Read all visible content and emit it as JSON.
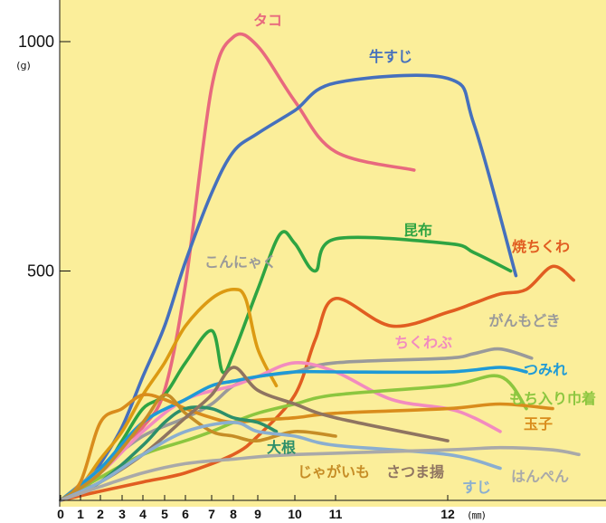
{
  "chart_data": {
    "type": "line",
    "title": "",
    "xlabel": "",
    "ylabel": "",
    "x_unit": "(㎜)",
    "y_unit": "(g)",
    "x_ticks": [
      "0",
      "1",
      "2",
      "3",
      "4",
      "5",
      "6",
      "7",
      "8",
      "9",
      "10",
      "11",
      "12"
    ],
    "y_ticks": [
      "500",
      "1000"
    ],
    "ylim": [
      0,
      1050
    ],
    "grid": false,
    "background": "#fbee9a",
    "series": [
      {
        "name": "タコ",
        "color": "#e8697e",
        "x": [
          0,
          1,
          2,
          3,
          4,
          5,
          6,
          7,
          8,
          9,
          10,
          11,
          11.7
        ],
        "y": [
          0,
          20,
          60,
          120,
          160,
          240,
          470,
          900,
          1010,
          990,
          870,
          760,
          720
        ]
      },
      {
        "name": "牛すじ",
        "color": "#4570bd",
        "x": [
          0,
          1,
          2,
          3,
          4,
          5,
          6,
          7,
          8,
          9,
          10,
          11,
          12,
          12.5,
          13.3
        ],
        "y": [
          0,
          20,
          80,
          160,
          270,
          380,
          520,
          670,
          760,
          800,
          850,
          910,
          920,
          820,
          490
        ]
      },
      {
        "name": "昆布",
        "color": "#2ea442",
        "x": [
          0,
          2,
          3,
          4,
          5,
          6,
          7,
          7.5,
          8,
          9,
          9.6,
          10,
          10.5,
          11,
          12,
          12.5,
          13.2
        ],
        "y": [
          0,
          60,
          130,
          200,
          230,
          300,
          370,
          280,
          320,
          460,
          580,
          560,
          500,
          570,
          560,
          540,
          500
        ]
      },
      {
        "name": "焼ちくわ",
        "color": "#e15d21",
        "x": [
          0,
          2,
          4,
          6,
          8,
          9,
          10,
          10.5,
          11,
          11.5,
          12,
          12.5,
          13,
          13.5,
          14,
          14.4
        ],
        "y": [
          0,
          20,
          40,
          60,
          100,
          140,
          230,
          350,
          440,
          380,
          410,
          430,
          450,
          460,
          510,
          480
        ]
      },
      {
        "name": "こんにゃく",
        "color": "#dc9a12",
        "x": [
          0,
          1,
          2,
          3,
          4,
          5,
          6,
          7,
          8,
          8.5,
          9,
          9.5
        ],
        "y": [
          0,
          30,
          90,
          150,
          230,
          300,
          380,
          440,
          460,
          440,
          330,
          250
        ]
      },
      {
        "name": "がんもどき",
        "color": "#9a9a9a",
        "x": [
          0,
          2,
          4,
          6,
          7,
          8,
          9,
          10,
          11,
          12,
          12.5,
          13,
          13.6
        ],
        "y": [
          0,
          70,
          140,
          180,
          210,
          250,
          270,
          280,
          300,
          310,
          320,
          330,
          310
        ]
      },
      {
        "name": "ちくわぶ",
        "color": "#f28bbf",
        "x": [
          0,
          2,
          4,
          6,
          8,
          9,
          10,
          11,
          11.5,
          12,
          12.5,
          13
        ],
        "y": [
          0,
          60,
          150,
          220,
          250,
          270,
          300,
          280,
          220,
          200,
          180,
          150
        ]
      },
      {
        "name": "つみれ",
        "color": "#1e9ad6",
        "x": [
          0,
          2,
          4,
          6,
          7,
          8,
          9,
          10,
          11,
          12,
          13,
          13.5
        ],
        "y": [
          0,
          70,
          170,
          220,
          250,
          260,
          270,
          280,
          280,
          280,
          290,
          280
        ]
      },
      {
        "name": "もち入り巾着",
        "color": "#8cc63f",
        "x": [
          0,
          2,
          4,
          6,
          7,
          8,
          9,
          10,
          11,
          12,
          13,
          13.5
        ],
        "y": [
          0,
          50,
          100,
          130,
          150,
          170,
          190,
          210,
          230,
          250,
          270,
          200
        ]
      },
      {
        "name": "玉子",
        "color": "#d98c1c",
        "x": [
          0,
          1,
          2,
          3,
          4,
          5,
          6,
          7,
          8,
          9,
          10,
          11,
          12,
          13,
          14
        ],
        "y": [
          0,
          40,
          170,
          200,
          230,
          220,
          200,
          180,
          170,
          175,
          180,
          190,
          200,
          210,
          200
        ]
      },
      {
        "name": "大根",
        "color": "#2c8f6a",
        "x": [
          0,
          2,
          4,
          5,
          6,
          7,
          8,
          9,
          9.5
        ],
        "y": [
          0,
          40,
          120,
          170,
          200,
          200,
          180,
          170,
          150
        ]
      },
      {
        "name": "じゃがいも",
        "color": "#c68d26",
        "x": [
          0,
          2,
          4,
          5,
          6,
          7,
          8,
          9,
          10,
          11
        ],
        "y": [
          0,
          60,
          170,
          230,
          190,
          150,
          140,
          130,
          150,
          140
        ]
      },
      {
        "name": "さつま揚",
        "color": "#8f7461",
        "x": [
          0,
          2,
          4,
          6,
          7,
          8,
          9,
          10,
          11,
          12
        ],
        "y": [
          0,
          40,
          100,
          180,
          230,
          290,
          240,
          210,
          180,
          130
        ]
      },
      {
        "name": "すじ",
        "color": "#8aaed0",
        "x": [
          0,
          2,
          4,
          6,
          8,
          9,
          10,
          11,
          12,
          13
        ],
        "y": [
          0,
          40,
          100,
          150,
          170,
          150,
          140,
          120,
          100,
          70
        ]
      },
      {
        "name": "はんぺん",
        "color": "#a9a9a9",
        "x": [
          0,
          2,
          4,
          6,
          8,
          10,
          12,
          13,
          14,
          14.5
        ],
        "y": [
          0,
          30,
          60,
          80,
          90,
          100,
          110,
          115,
          110,
          100
        ]
      }
    ]
  }
}
